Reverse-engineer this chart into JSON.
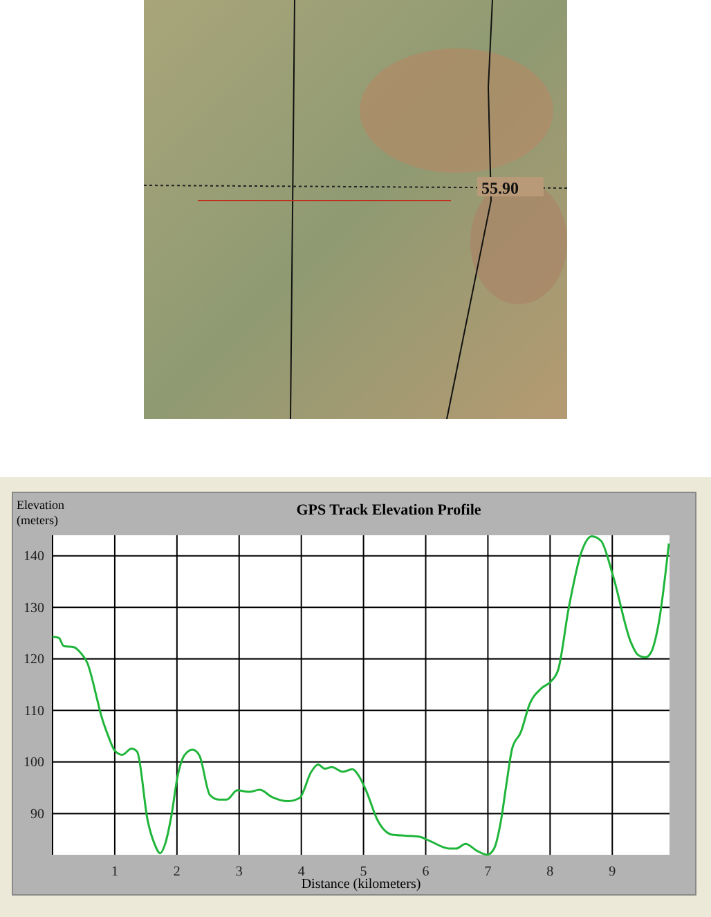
{
  "chart_data": {
    "type": "line",
    "title": "GPS Track Elevation Profile",
    "xlabel": "Distance (kilometers)",
    "ylabel": "Elevation\n(meters)",
    "annotations": [
      "55.90"
    ],
    "x": [
      0,
      0.1,
      0.18,
      0.34,
      0.45,
      0.56,
      0.72,
      0.76,
      0.9,
      1.0,
      1.12,
      1.27,
      1.36,
      1.53,
      1.64,
      1.73,
      1.81,
      1.91,
      2.01,
      2.12,
      2.25,
      2.36,
      2.53,
      2.67,
      2.8,
      2.97,
      3.16,
      3.33,
      3.53,
      3.79,
      3.97,
      4.16,
      4.27,
      4.38,
      4.49,
      4.67,
      4.82,
      4.93,
      5.04,
      5.23,
      5.46,
      5.68,
      5.9,
      6.08,
      6.38,
      6.49,
      6.64,
      6.82,
      6.99,
      7.1,
      7.21,
      7.3,
      7.39,
      7.53,
      7.67,
      7.86,
      8.01,
      8.13,
      8.3,
      8.5,
      8.67,
      8.82,
      9.01,
      9.3,
      9.41,
      9.53,
      9.61,
      9.75,
      9.91
    ],
    "series": [
      {
        "color": "#1fb53a",
        "values": [
          124.3,
          124.1,
          122.5,
          122.3,
          121.2,
          119.2,
          112,
          110,
          104.9,
          102.2,
          101.4,
          102.6,
          102,
          88.6,
          84.1,
          82.3,
          84.1,
          89.5,
          97.2,
          101.3,
          102.4,
          101.3,
          93.6,
          92.7,
          92.7,
          94.5,
          94.2,
          94.6,
          93.2,
          92.4,
          93,
          98.1,
          99.5,
          98.7,
          99,
          98.1,
          98.6,
          97.2,
          94.5,
          88.6,
          85.9,
          85.7,
          85.5,
          84.6,
          83.2,
          83.2,
          84.1,
          82.8,
          82,
          83.2,
          88.6,
          95.9,
          102.6,
          105.8,
          111.2,
          114.3,
          115.6,
          117.9,
          129.9,
          140.6,
          143.8,
          142.9,
          136.2,
          123.2,
          120.8,
          120.3,
          121,
          127.2,
          142.4
        ]
      }
    ],
    "xlim": [
      0,
      9.92
    ],
    "ylim": [
      82,
      144
    ],
    "xticks": [
      1,
      2,
      3,
      4,
      5,
      6,
      7,
      8,
      9
    ],
    "yticks": [
      90,
      100,
      110,
      120,
      130,
      140
    ],
    "grid": true,
    "line_style": "solid",
    "marker": "none"
  }
}
